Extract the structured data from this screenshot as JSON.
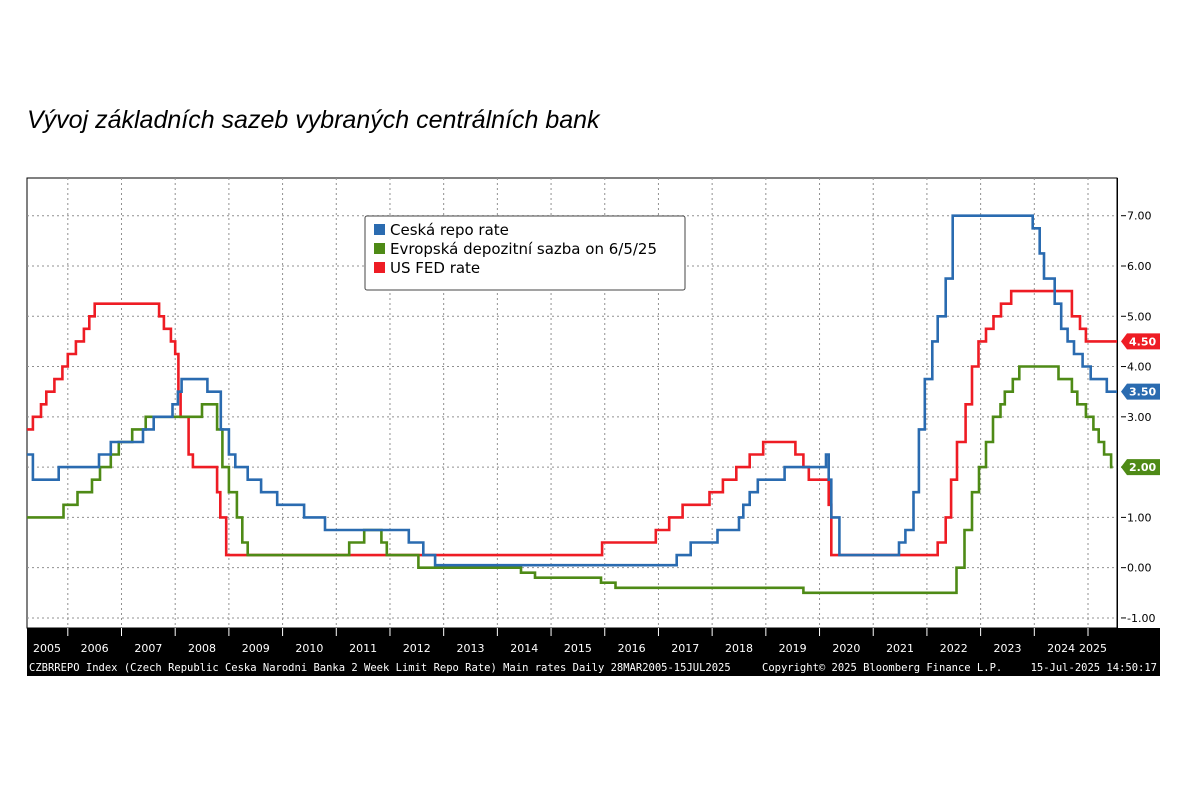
{
  "title": "Vývoj základních sazeb vybraných centrálních bank",
  "footer": {
    "index": "CZBRREPO Index (Czech Republic Ceska Narodni Banka 2 Week Limit Repo Rate) Main rates  Daily 28MAR2005-15JUL2025",
    "copyright": "Copyright© 2025 Bloomberg Finance L.P.",
    "timestamp": "15-Jul-2025 14:50:17"
  },
  "colors": {
    "czech": "#2a6bb0",
    "ecb": "#4e8a16",
    "fed": "#ee1c24",
    "axis_bg": "#000000",
    "grid": "#909090"
  },
  "chart_data": {
    "type": "line",
    "xlim": [
      2005.24,
      2025.54
    ],
    "ylim": [
      -1.2,
      7.75
    ],
    "yticks": [
      -1,
      0,
      1,
      2,
      3,
      4,
      5,
      6,
      7
    ],
    "ytick_labels": [
      "-1.00",
      "0.00",
      "1.00",
      "2.00",
      "3.00",
      "4.00",
      "5.00",
      "6.00",
      "7.00"
    ],
    "xtick_labels": [
      "2005",
      "2006",
      "2007",
      "2008",
      "2009",
      "2010",
      "2011",
      "2012",
      "2013",
      "2014",
      "2015",
      "2016",
      "2017",
      "2018",
      "2019",
      "2020",
      "2021",
      "2022",
      "2023",
      "2024",
      "2025"
    ],
    "grid": true,
    "legend_position": "top-center",
    "series": [
      {
        "name": "Ceská repo rate",
        "color_key": "czech",
        "last_value": "3.50",
        "step_points": [
          [
            2005.24,
            2.25
          ],
          [
            2005.35,
            1.75
          ],
          [
            2005.83,
            2.0
          ],
          [
            2006.58,
            2.25
          ],
          [
            2006.8,
            2.5
          ],
          [
            2007.4,
            2.75
          ],
          [
            2007.6,
            3.0
          ],
          [
            2007.95,
            3.25
          ],
          [
            2008.05,
            3.5
          ],
          [
            2008.12,
            3.75
          ],
          [
            2008.6,
            3.5
          ],
          [
            2008.85,
            2.75
          ],
          [
            2009.0,
            2.25
          ],
          [
            2009.12,
            2.0
          ],
          [
            2009.35,
            1.75
          ],
          [
            2009.6,
            1.5
          ],
          [
            2009.9,
            1.25
          ],
          [
            2010.4,
            1.0
          ],
          [
            2010.79,
            0.75
          ],
          [
            2012.35,
            0.5
          ],
          [
            2012.62,
            0.25
          ],
          [
            2012.84,
            0.05
          ],
          [
            2017.34,
            0.25
          ],
          [
            2017.6,
            0.5
          ],
          [
            2018.1,
            0.75
          ],
          [
            2018.5,
            1.0
          ],
          [
            2018.58,
            1.25
          ],
          [
            2018.7,
            1.5
          ],
          [
            2018.85,
            1.75
          ],
          [
            2019.35,
            2.0
          ],
          [
            2020.12,
            2.25
          ],
          [
            2020.17,
            1.75
          ],
          [
            2020.22,
            1.0
          ],
          [
            2020.37,
            0.25
          ],
          [
            2021.48,
            0.5
          ],
          [
            2021.6,
            0.75
          ],
          [
            2021.75,
            1.5
          ],
          [
            2021.85,
            2.75
          ],
          [
            2021.96,
            3.75
          ],
          [
            2022.1,
            4.5
          ],
          [
            2022.2,
            5.0
          ],
          [
            2022.35,
            5.75
          ],
          [
            2022.48,
            7.0
          ],
          [
            2023.97,
            6.75
          ],
          [
            2024.1,
            6.25
          ],
          [
            2024.18,
            5.75
          ],
          [
            2024.38,
            5.25
          ],
          [
            2024.5,
            4.75
          ],
          [
            2024.62,
            4.5
          ],
          [
            2024.74,
            4.25
          ],
          [
            2024.9,
            4.0
          ],
          [
            2025.05,
            3.75
          ],
          [
            2025.35,
            3.5
          ],
          [
            2025.54,
            3.5
          ]
        ]
      },
      {
        "name": "Evropská depozitní sazba on 6/5/25",
        "color_key": "ecb",
        "last_value": "2.00",
        "step_points": [
          [
            2005.24,
            1.0
          ],
          [
            2005.92,
            1.25
          ],
          [
            2006.18,
            1.5
          ],
          [
            2006.45,
            1.75
          ],
          [
            2006.6,
            2.0
          ],
          [
            2006.8,
            2.25
          ],
          [
            2006.95,
            2.5
          ],
          [
            2007.2,
            2.75
          ],
          [
            2007.45,
            3.0
          ],
          [
            2008.5,
            3.25
          ],
          [
            2008.78,
            2.75
          ],
          [
            2008.88,
            2.0
          ],
          [
            2009.0,
            1.5
          ],
          [
            2009.15,
            1.0
          ],
          [
            2009.25,
            0.5
          ],
          [
            2009.35,
            0.25
          ],
          [
            2011.24,
            0.5
          ],
          [
            2011.52,
            0.75
          ],
          [
            2011.84,
            0.5
          ],
          [
            2011.94,
            0.25
          ],
          [
            2012.53,
            0.0
          ],
          [
            2014.44,
            -0.1
          ],
          [
            2014.7,
            -0.2
          ],
          [
            2015.93,
            -0.3
          ],
          [
            2016.2,
            -0.4
          ],
          [
            2019.7,
            -0.5
          ],
          [
            2022.55,
            0.0
          ],
          [
            2022.7,
            0.75
          ],
          [
            2022.84,
            1.5
          ],
          [
            2022.97,
            2.0
          ],
          [
            2023.1,
            2.5
          ],
          [
            2023.23,
            3.0
          ],
          [
            2023.37,
            3.25
          ],
          [
            2023.45,
            3.5
          ],
          [
            2023.6,
            3.75
          ],
          [
            2023.72,
            4.0
          ],
          [
            2024.45,
            3.75
          ],
          [
            2024.7,
            3.5
          ],
          [
            2024.8,
            3.25
          ],
          [
            2024.96,
            3.0
          ],
          [
            2025.1,
            2.75
          ],
          [
            2025.2,
            2.5
          ],
          [
            2025.3,
            2.25
          ],
          [
            2025.43,
            2.0
          ],
          [
            2025.46,
            2.0
          ]
        ]
      },
      {
        "name": "US FED rate",
        "color_key": "fed",
        "last_value": "4.50",
        "step_points": [
          [
            2005.24,
            2.75
          ],
          [
            2005.35,
            3.0
          ],
          [
            2005.5,
            3.25
          ],
          [
            2005.6,
            3.5
          ],
          [
            2005.75,
            3.75
          ],
          [
            2005.9,
            4.0
          ],
          [
            2006.0,
            4.25
          ],
          [
            2006.15,
            4.5
          ],
          [
            2006.3,
            4.75
          ],
          [
            2006.4,
            5.0
          ],
          [
            2006.5,
            5.25
          ],
          [
            2007.7,
            5.0
          ],
          [
            2007.79,
            4.75
          ],
          [
            2007.92,
            4.5
          ],
          [
            2008.0,
            4.25
          ],
          [
            2008.06,
            3.5
          ],
          [
            2008.1,
            3.0
          ],
          [
            2008.25,
            2.25
          ],
          [
            2008.33,
            2.0
          ],
          [
            2008.78,
            1.5
          ],
          [
            2008.84,
            1.0
          ],
          [
            2008.95,
            0.25
          ],
          [
            2015.95,
            0.5
          ],
          [
            2016.95,
            0.75
          ],
          [
            2017.2,
            1.0
          ],
          [
            2017.45,
            1.25
          ],
          [
            2017.95,
            1.5
          ],
          [
            2018.2,
            1.75
          ],
          [
            2018.45,
            2.0
          ],
          [
            2018.7,
            2.25
          ],
          [
            2018.95,
            2.5
          ],
          [
            2019.55,
            2.25
          ],
          [
            2019.7,
            2.0
          ],
          [
            2019.8,
            1.75
          ],
          [
            2020.17,
            1.25
          ],
          [
            2020.22,
            0.25
          ],
          [
            2022.2,
            0.5
          ],
          [
            2022.35,
            1.0
          ],
          [
            2022.45,
            1.75
          ],
          [
            2022.56,
            2.5
          ],
          [
            2022.72,
            3.25
          ],
          [
            2022.84,
            4.0
          ],
          [
            2022.96,
            4.5
          ],
          [
            2023.1,
            4.75
          ],
          [
            2023.24,
            5.0
          ],
          [
            2023.38,
            5.25
          ],
          [
            2023.57,
            5.5
          ],
          [
            2024.7,
            5.0
          ],
          [
            2024.85,
            4.75
          ],
          [
            2024.96,
            4.5
          ],
          [
            2025.54,
            4.5
          ]
        ]
      }
    ]
  }
}
